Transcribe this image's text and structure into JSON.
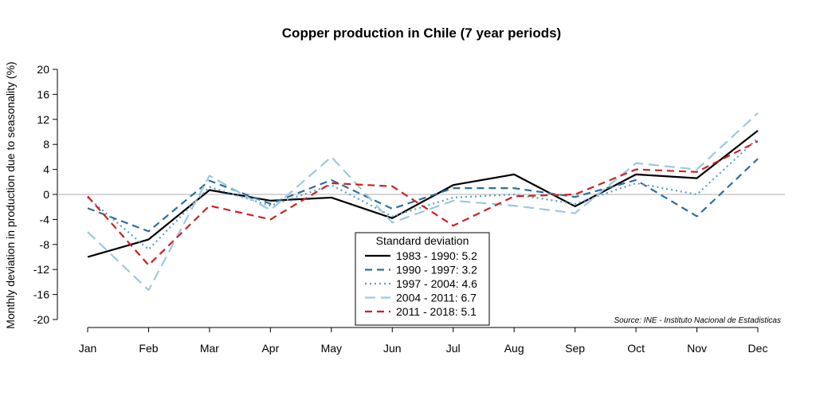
{
  "chart_data": {
    "type": "line",
    "title": "Copper production in Chile (7 year periods)",
    "xlabel": "",
    "ylabel": "Monthly deviation in production due to seasonality (%)",
    "categories": [
      "Jan",
      "Feb",
      "Mar",
      "Apr",
      "May",
      "Jun",
      "Jul",
      "Aug",
      "Sep",
      "Oct",
      "Nov",
      "Dec"
    ],
    "yticks": [
      20,
      16,
      12,
      8,
      4,
      0,
      -4,
      -8,
      -12,
      -16,
      -20
    ],
    "ylim": [
      -20,
      20
    ],
    "zero_line": true,
    "legend_title": "Standard deviation",
    "legend_position": "bottom-center",
    "source": "Source: INE - Instituto Nacional de Estadisticas",
    "series": [
      {
        "name": "1983 - 1990: 5.2",
        "color": "#000000",
        "dash": "solid",
        "values": [
          -10,
          -7.2,
          0.7,
          -1,
          -0.5,
          -3.8,
          1.5,
          3.2,
          -1.9,
          3.2,
          2.6,
          10.2
        ]
      },
      {
        "name": "1990 - 1997: 3.2",
        "color": "#2e6f9e",
        "dash": "dashed",
        "values": [
          -2.2,
          -5.9,
          2.2,
          -1.5,
          2.3,
          -2.3,
          1.0,
          1.0,
          -0.4,
          2.3,
          -3.5,
          5.7
        ]
      },
      {
        "name": "1997 - 2004: 4.6",
        "color": "#5b9fc4",
        "dash": "dotted",
        "values": [
          -0.5,
          -8.8,
          1.2,
          -1.8,
          1.5,
          -3.5,
          -0.5,
          0.0,
          -1.5,
          1.8,
          0.0,
          9.0
        ]
      },
      {
        "name": "2004 - 2011: 6.7",
        "color": "#9cc9de",
        "dash": "longdash",
        "values": [
          -6.0,
          -15.3,
          3.0,
          -2.5,
          6.0,
          -4.5,
          -1.0,
          -1.8,
          -3.0,
          5.0,
          4.0,
          13.0
        ]
      },
      {
        "name": "2011 - 2018: 5.1",
        "color": "#cc2222",
        "dash": "dashed",
        "values": [
          -0.3,
          -11.3,
          -1.8,
          -4.0,
          1.8,
          1.3,
          -5.0,
          -0.3,
          0.0,
          4.0,
          3.6,
          8.5
        ]
      }
    ]
  }
}
